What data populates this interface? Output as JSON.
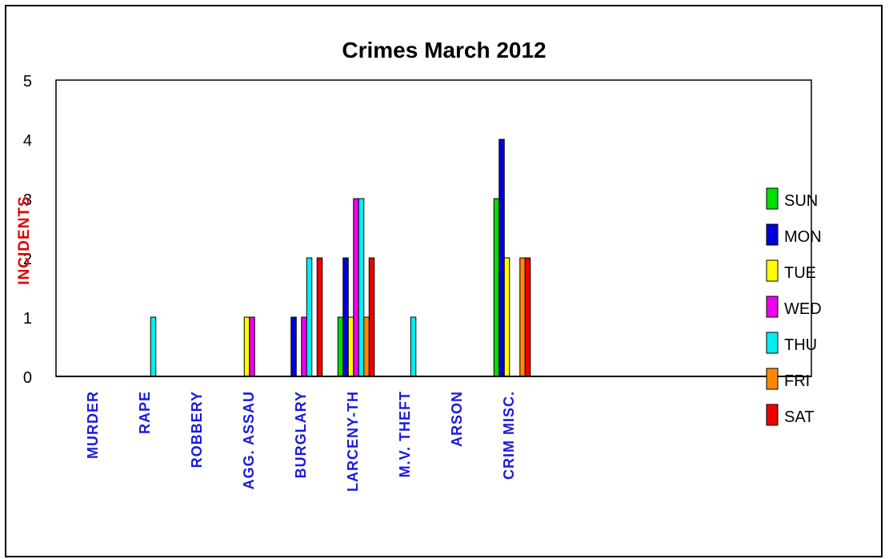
{
  "chart_data": {
    "type": "bar",
    "title": "Crimes March 2012",
    "ylabel": "INCIDENTS",
    "xlabel": "",
    "ylim": [
      0,
      5
    ],
    "yticks": [
      "0",
      "1",
      "2",
      "3",
      "4",
      "5"
    ],
    "legend_position": "right",
    "categories": [
      "MURDER",
      "RAPE",
      "ROBBERY",
      "AGG. ASSAU",
      "BURGLARY",
      "LARCENY-TH",
      "M.V. THEFT",
      "ARSON",
      "CRIM MISC."
    ],
    "series": [
      {
        "name": "SUN",
        "color": "#00dd00",
        "values": [
          0,
          0,
          0,
          0,
          0,
          1,
          0,
          0,
          3
        ]
      },
      {
        "name": "MON",
        "color": "#0000dd",
        "values": [
          0,
          0,
          0,
          0,
          1,
          2,
          0,
          0,
          4
        ]
      },
      {
        "name": "TUE",
        "color": "#ffff00",
        "values": [
          0,
          0,
          0,
          1,
          0,
          1,
          0,
          0,
          2
        ]
      },
      {
        "name": "WED",
        "color": "#ee00ee",
        "values": [
          0,
          0,
          0,
          1,
          1,
          3,
          0,
          0,
          0
        ]
      },
      {
        "name": "THU",
        "color": "#00eeee",
        "values": [
          0,
          1,
          0,
          0,
          2,
          3,
          1,
          0,
          0
        ]
      },
      {
        "name": "FRI",
        "color": "#ff8800",
        "values": [
          0,
          0,
          0,
          0,
          0,
          1,
          0,
          0,
          2
        ]
      },
      {
        "name": "SAT",
        "color": "#ee0000",
        "values": [
          0,
          0,
          0,
          0,
          2,
          2,
          0,
          0,
          2
        ]
      }
    ],
    "colors": {
      "category_labels": "#1a1adc",
      "ylabel": "#dd0000"
    }
  }
}
